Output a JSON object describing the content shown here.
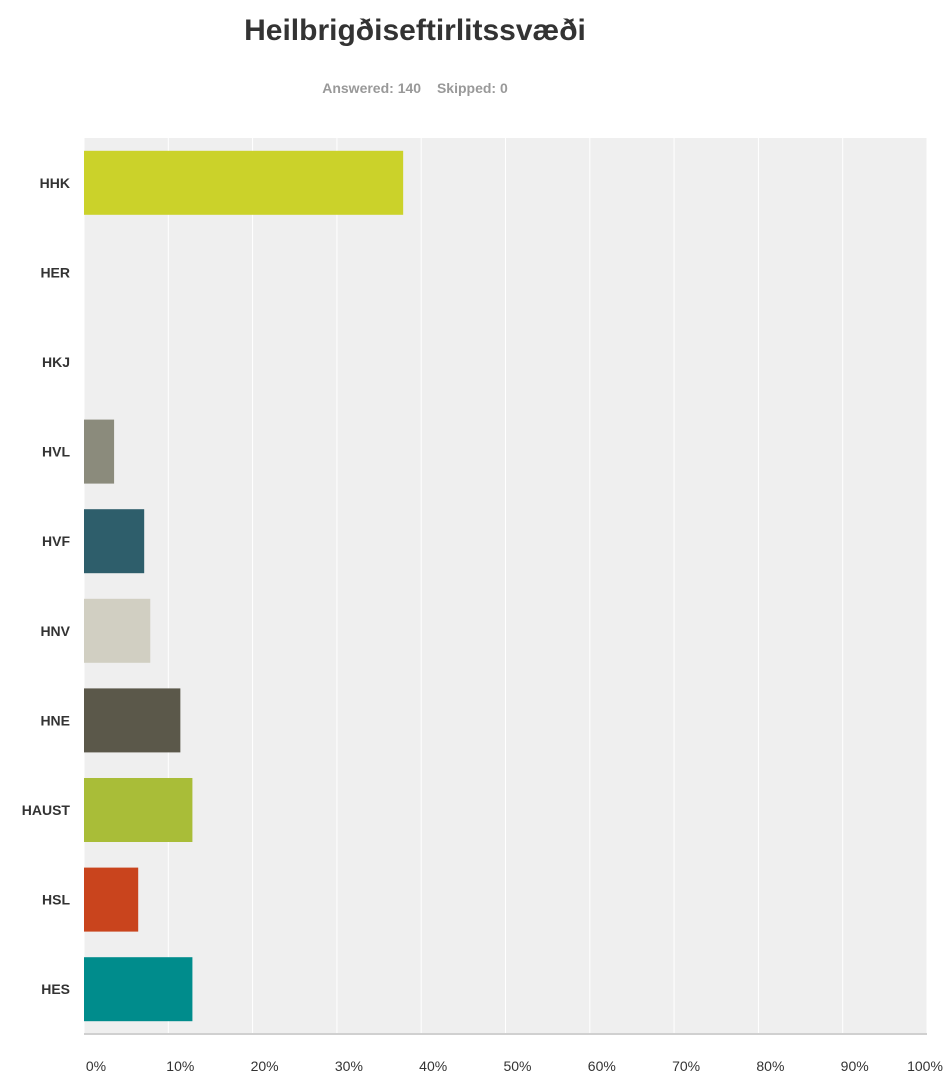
{
  "header": {
    "answered_text": "Answered: 140",
    "skipped_text": "Skipped: 0"
  },
  "chart_data": {
    "type": "bar",
    "orientation": "horizontal",
    "title": "Heilbrigðiseftirlitssvæði",
    "categories": [
      "HHK",
      "HER",
      "HKJ",
      "HVL",
      "HVF",
      "HNV",
      "HNE",
      "HAUST",
      "HSL",
      "HES"
    ],
    "values": [
      37.86,
      0,
      0,
      3.57,
      7.14,
      7.86,
      11.43,
      12.86,
      6.43,
      12.86
    ],
    "value_unit": "%",
    "x_ticks": [
      "0%",
      "10%",
      "20%",
      "30%",
      "40%",
      "50%",
      "60%",
      "70%",
      "80%",
      "90%",
      "100%"
    ],
    "xlim": [
      0,
      100
    ],
    "grid": true,
    "colors": [
      "#cbd22a",
      "#cbd22a",
      "#cbd22a",
      "#8b8b7c",
      "#2e5e6b",
      "#d1cfc2",
      "#5b584a",
      "#a9bd38",
      "#c9441d",
      "#008c8c"
    ],
    "plot_background": "#efefef",
    "grid_color": "#ffffff"
  }
}
